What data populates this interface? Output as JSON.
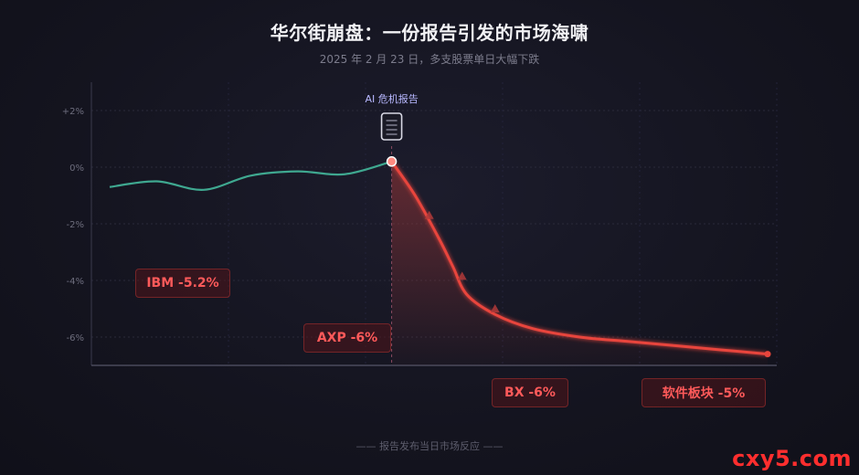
{
  "title": "华尔街崩盘：一份报告引发的市场海啸",
  "subtitle": "2025 年 2 月 23 日，多支股票单日大幅下跌",
  "footer": "—— 报告发布当日市场反应 ——",
  "watermark": "cxy5.com",
  "colors": {
    "pre_report": "#3fa890",
    "post_report": "#e8453c",
    "callout_text": "#ff5a5a",
    "marker_label": "#b8b8ff"
  },
  "chart_data": {
    "type": "line",
    "title": "华尔街崩盘：一份报告引发的市场海啸",
    "subtitle": "2025 年 2 月 23 日，多支股票单日大幅下跌",
    "xlabel": "",
    "ylabel": "",
    "ylim": [
      -7,
      3
    ],
    "yticks": [
      2,
      0,
      -2,
      -4,
      -6
    ],
    "ytick_labels": [
      "+2%",
      "0%",
      "-2%",
      "-4%",
      "-6%"
    ],
    "grid": true,
    "series": [
      {
        "segment": "before",
        "x": [
          0,
          1,
          2,
          3,
          4,
          5,
          6
        ],
        "y": [
          -0.7,
          -0.5,
          -0.8,
          -0.3,
          -0.15,
          -0.25,
          0.2
        ]
      },
      {
        "segment": "after",
        "x": [
          6,
          6.5,
          7,
          7.3,
          7.6,
          8.2,
          9,
          10,
          11,
          12,
          13,
          14
        ],
        "y": [
          0.2,
          -1.0,
          -2.5,
          -3.5,
          -4.5,
          -5.2,
          -5.7,
          -6.0,
          -6.15,
          -6.3,
          -6.45,
          -6.6
        ]
      }
    ],
    "event_marker": {
      "x": 6,
      "label": "AI 危机报告",
      "icon": "document-icon"
    },
    "triangle_markers": [
      {
        "x": 6.8,
        "y": -1.7
      },
      {
        "x": 7.5,
        "y": -3.85
      },
      {
        "x": 8.2,
        "y": -5.0
      }
    ],
    "annotations": [
      {
        "label": "IBM -5.2%"
      },
      {
        "label": "AXP -6%"
      },
      {
        "label": "BX -6%"
      },
      {
        "label": "软件板块 -5%"
      }
    ]
  }
}
